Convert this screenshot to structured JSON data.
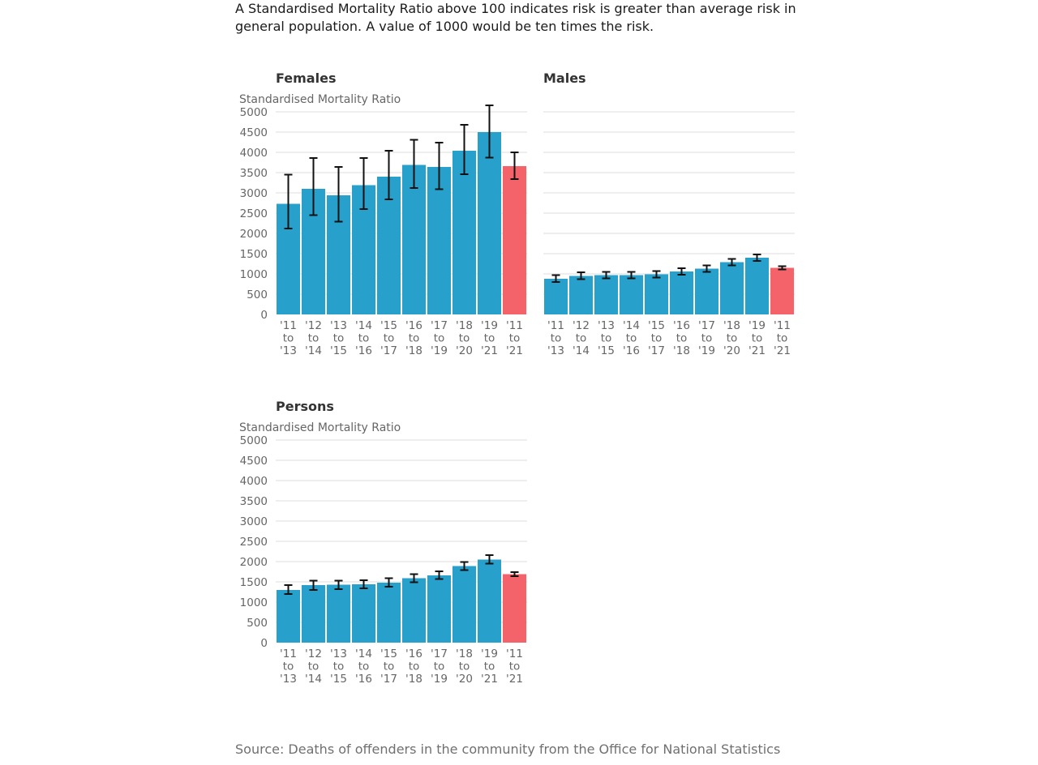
{
  "intro": "A Standardised Mortality Ratio above 100 indicates risk is greater than average risk in general population. A value of 1000 would be ten times the risk.",
  "source": "Source: Deaths of offenders in the community from the Office for National Statistics",
  "colors": {
    "bar": "#27a1cc",
    "highlight": "#f4626a",
    "grid": "#dcdcdc",
    "error_bar": "#111111"
  },
  "chart_data": [
    {
      "type": "bar",
      "title": "Females",
      "ylabel": "Standardised Mortality Ratio",
      "ylim": [
        0,
        5000
      ],
      "yticks": [
        0,
        500,
        1000,
        1500,
        2000,
        2500,
        3000,
        3500,
        4000,
        4500,
        5000
      ],
      "show_y_tick_labels": true,
      "grid": true,
      "categories": [
        [
          "'11",
          "to",
          "'13"
        ],
        [
          "'12",
          "to",
          "'14"
        ],
        [
          "'13",
          "to",
          "'15"
        ],
        [
          "'14",
          "to",
          "'16"
        ],
        [
          "'15",
          "to",
          "'17"
        ],
        [
          "'16",
          "to",
          "'18"
        ],
        [
          "'17",
          "to",
          "'19"
        ],
        [
          "'18",
          "to",
          "'20"
        ],
        [
          "'19",
          "to",
          "'21"
        ],
        [
          "'11",
          "to",
          "'21"
        ]
      ],
      "values": [
        2730,
        3100,
        2940,
        3190,
        3400,
        3690,
        3640,
        4040,
        4500,
        3660
      ],
      "error_low": [
        2120,
        2450,
        2290,
        2600,
        2840,
        3120,
        3090,
        3460,
        3870,
        3340
      ],
      "error_high": [
        3450,
        3860,
        3640,
        3860,
        4040,
        4310,
        4240,
        4680,
        5160,
        4000
      ],
      "highlight_index": 9
    },
    {
      "type": "bar",
      "title": "Males",
      "ylabel": "",
      "ylim": [
        0,
        5000
      ],
      "yticks": [
        0,
        500,
        1000,
        1500,
        2000,
        2500,
        3000,
        3500,
        4000,
        4500,
        5000
      ],
      "show_y_tick_labels": false,
      "grid": true,
      "categories": [
        [
          "'11",
          "to",
          "'13"
        ],
        [
          "'12",
          "to",
          "'14"
        ],
        [
          "'13",
          "to",
          "'15"
        ],
        [
          "'14",
          "to",
          "'16"
        ],
        [
          "'15",
          "to",
          "'17"
        ],
        [
          "'16",
          "to",
          "'18"
        ],
        [
          "'17",
          "to",
          "'19"
        ],
        [
          "'18",
          "to",
          "'20"
        ],
        [
          "'19",
          "to",
          "'21"
        ],
        [
          "'11",
          "to",
          "'21"
        ]
      ],
      "values": [
        880,
        950,
        970,
        970,
        990,
        1060,
        1130,
        1290,
        1400,
        1150
      ],
      "error_low": [
        800,
        870,
        890,
        890,
        910,
        980,
        1050,
        1210,
        1320,
        1110
      ],
      "error_high": [
        970,
        1040,
        1050,
        1050,
        1070,
        1140,
        1210,
        1370,
        1480,
        1190
      ],
      "highlight_index": 9
    },
    {
      "type": "bar",
      "title": "Persons",
      "ylabel": "Standardised Mortality Ratio",
      "ylim": [
        0,
        5000
      ],
      "yticks": [
        0,
        500,
        1000,
        1500,
        2000,
        2500,
        3000,
        3500,
        4000,
        4500,
        5000
      ],
      "show_y_tick_labels": true,
      "grid": true,
      "categories": [
        [
          "'11",
          "to",
          "'13"
        ],
        [
          "'12",
          "to",
          "'14"
        ],
        [
          "'13",
          "to",
          "'15"
        ],
        [
          "'14",
          "to",
          "'16"
        ],
        [
          "'15",
          "to",
          "'17"
        ],
        [
          "'16",
          "to",
          "'18"
        ],
        [
          "'17",
          "to",
          "'19"
        ],
        [
          "'18",
          "to",
          "'20"
        ],
        [
          "'19",
          "to",
          "'21"
        ],
        [
          "'11",
          "to",
          "'21"
        ]
      ],
      "values": [
        1300,
        1420,
        1430,
        1440,
        1480,
        1590,
        1660,
        1890,
        2050,
        1690
      ],
      "error_low": [
        1200,
        1300,
        1320,
        1340,
        1380,
        1490,
        1570,
        1790,
        1950,
        1640
      ],
      "error_high": [
        1420,
        1530,
        1530,
        1540,
        1590,
        1690,
        1760,
        1990,
        2160,
        1740
      ],
      "highlight_index": 9
    }
  ]
}
